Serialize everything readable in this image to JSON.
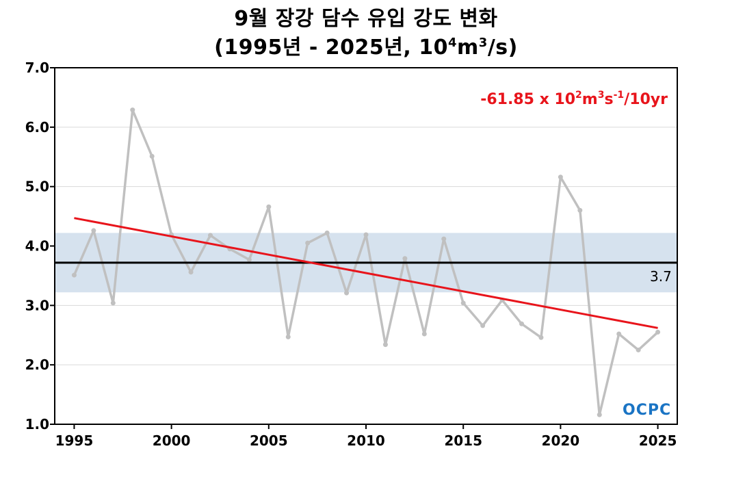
{
  "title": {
    "line1": "9월 장강 담수 유입 강도 변화",
    "line2_prefix": "(1995년 - 2025년, 10",
    "line2_sup1": "4",
    "line2_mid": "m",
    "line2_sup2": "3",
    "line2_suffix": "/s)"
  },
  "trend_label": {
    "prefix": "-61.85 x 10",
    "sup1": "2",
    "mid": "m",
    "sup2": "3",
    "mid2": "s",
    "sup3": "-1",
    "suffix": "/10yr"
  },
  "logo_text": "OCPC",
  "colors": {
    "series": "#c0c0c0",
    "trend": "#e8141b",
    "mean": "#000000",
    "band": "#d6e2ee",
    "logo": "#1a74c4"
  },
  "chart_data": {
    "type": "line",
    "x": [
      1995,
      1996,
      1997,
      1998,
      1999,
      2000,
      2001,
      2002,
      2003,
      2004,
      2005,
      2006,
      2007,
      2008,
      2009,
      2010,
      2011,
      2012,
      2013,
      2014,
      2015,
      2016,
      2017,
      2018,
      2019,
      2020,
      2021,
      2022,
      2023,
      2024,
      2025
    ],
    "series": [
      {
        "values": [
          3.51,
          4.26,
          3.04,
          6.29,
          5.51,
          4.19,
          3.56,
          4.18,
          3.95,
          3.77,
          4.66,
          2.47,
          4.05,
          4.22,
          3.21,
          4.19,
          2.34,
          3.79,
          2.52,
          4.12,
          3.04,
          2.66,
          3.09,
          2.69,
          2.46,
          5.16,
          4.6,
          1.16,
          2.52,
          2.25,
          2.55
        ]
      }
    ],
    "trend": {
      "start": [
        1995,
        4.47
      ],
      "end": [
        2025,
        2.62
      ],
      "slope_per_decade": -0.6185
    },
    "mean": {
      "value": 3.72,
      "label": "3.7"
    },
    "band": {
      "low": 3.22,
      "high": 4.22
    },
    "xlim": [
      1994,
      2026
    ],
    "ylim": [
      1.0,
      7.0
    ],
    "yticks": [
      "1.0",
      "2.0",
      "3.0",
      "4.0",
      "5.0",
      "6.0",
      "7.0"
    ],
    "xticks": [
      "1995",
      "2000",
      "2005",
      "2010",
      "2015",
      "2020",
      "2025"
    ],
    "grid": true
  }
}
